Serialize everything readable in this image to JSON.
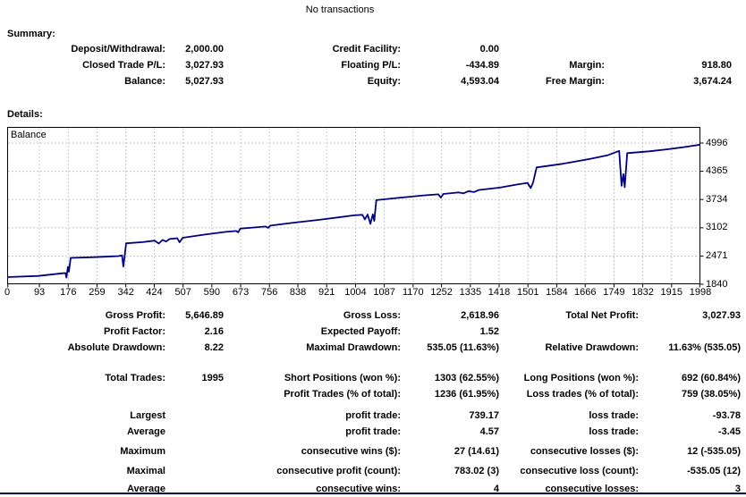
{
  "header": {
    "title": "No transactions"
  },
  "summary": {
    "heading": "Summary:",
    "rows": [
      {
        "cells": [
          "Deposit/Withdrawal:",
          "2,000.00",
          "Credit Facility:",
          "0.00",
          "",
          ""
        ],
        "gap": 0
      },
      {
        "cells": [
          "Closed Trade P/L:",
          "3,027.93",
          "Floating P/L:",
          "-434.89",
          "Margin:",
          "918.80"
        ],
        "gap": 0
      },
      {
        "cells": [
          "Balance:",
          "5,027.93",
          "Equity:",
          "4,593.04",
          "Free Margin:",
          "3,674.24"
        ],
        "gap": 0
      }
    ]
  },
  "details": {
    "heading": "Details:",
    "rows": [
      {
        "cells": [
          "Gross Profit:",
          "5,646.89",
          "Gross Loss:",
          "2,618.96",
          "Total Net Profit:",
          "3,027.93"
        ],
        "gap": 0
      },
      {
        "cells": [
          "Profit Factor:",
          "2.16",
          "Expected Payoff:",
          "1.52",
          "",
          ""
        ],
        "gap": 0
      },
      {
        "cells": [
          "Absolute Drawdown:",
          "8.22",
          "Maximal Drawdown:",
          "535.05 (11.63%)",
          "Relative Drawdown:",
          "11.63% (535.05)"
        ],
        "gap": 0
      },
      {
        "cells": [
          "Total Trades:",
          "1995",
          "Short Positions (won %):",
          "1303 (62.55%)",
          "Long Positions (won %):",
          "692 (60.84%)"
        ],
        "gap": 16
      },
      {
        "cells": [
          "",
          "",
          "Profit Trades (% of total):",
          "1236 (61.95%)",
          "Loss trades (% of total):",
          "759 (38.05%)"
        ],
        "gap": 0
      },
      {
        "cells": [
          "Largest",
          "",
          "profit trade:",
          "739.17",
          "loss trade:",
          "-93.78"
        ],
        "gap": 6
      },
      {
        "cells": [
          "Average",
          "",
          "profit trade:",
          "4.57",
          "loss trade:",
          "-3.45"
        ],
        "gap": 0
      },
      {
        "cells": [
          "Maximum",
          "",
          "consecutive wins ($):",
          "27 (14.61)",
          "consecutive losses ($):",
          "12 (-535.05)"
        ],
        "gap": 4
      },
      {
        "cells": [
          "Maximal",
          "",
          "consecutive profit (count):",
          "783.02 (3)",
          "consecutive loss (count):",
          "-535.05 (12)"
        ],
        "gap": 4
      },
      {
        "cells": [
          "Average",
          "",
          "consecutive wins:",
          "4",
          "consecutive losses:",
          "3"
        ],
        "gap": 2
      }
    ]
  },
  "chart_data": {
    "type": "line",
    "title": "Balance",
    "xlabel": "",
    "ylabel": "",
    "xlim": [
      0,
      1998
    ],
    "ylim": [
      1840,
      4996
    ],
    "x_ticks": [
      0,
      93,
      176,
      259,
      342,
      424,
      507,
      590,
      673,
      756,
      838,
      921,
      1004,
      1087,
      1170,
      1252,
      1335,
      1418,
      1501,
      1584,
      1666,
      1749,
      1832,
      1915,
      1998
    ],
    "y_ticks": [
      4996,
      4365,
      3734,
      3102,
      2471,
      1840
    ],
    "grid": true,
    "legend_position": "none",
    "line_color": "#000080",
    "grid_color": "#c8c8c8",
    "series": [
      {
        "name": "Balance",
        "points": [
          [
            0,
            2000
          ],
          [
            90,
            2025
          ],
          [
            160,
            2085
          ],
          [
            168,
            2090
          ],
          [
            171,
            1990
          ],
          [
            175,
            2230
          ],
          [
            178,
            2120
          ],
          [
            183,
            2430
          ],
          [
            250,
            2445
          ],
          [
            320,
            2470
          ],
          [
            331,
            2485
          ],
          [
            335,
            2235
          ],
          [
            339,
            2495
          ],
          [
            343,
            2755
          ],
          [
            390,
            2780
          ],
          [
            425,
            2815
          ],
          [
            437,
            2750
          ],
          [
            448,
            2830
          ],
          [
            458,
            2795
          ],
          [
            468,
            2850
          ],
          [
            490,
            2868
          ],
          [
            497,
            2778
          ],
          [
            506,
            2878
          ],
          [
            570,
            2950
          ],
          [
            630,
            3010
          ],
          [
            660,
            3030
          ],
          [
            666,
            3000
          ],
          [
            672,
            3085
          ],
          [
            700,
            3100
          ],
          [
            745,
            3130
          ],
          [
            752,
            3100
          ],
          [
            759,
            3150
          ],
          [
            820,
            3210
          ],
          [
            900,
            3280
          ],
          [
            1000,
            3380
          ],
          [
            1024,
            3392
          ],
          [
            1031,
            3290
          ],
          [
            1039,
            3398
          ],
          [
            1047,
            3190
          ],
          [
            1054,
            3402
          ],
          [
            1058,
            3255
          ],
          [
            1064,
            3720
          ],
          [
            1120,
            3765
          ],
          [
            1200,
            3825
          ],
          [
            1243,
            3850
          ],
          [
            1250,
            3775
          ],
          [
            1257,
            3858
          ],
          [
            1300,
            3892
          ],
          [
            1315,
            3872
          ],
          [
            1330,
            3922
          ],
          [
            1345,
            3900
          ],
          [
            1360,
            3948
          ],
          [
            1420,
            4000
          ],
          [
            1470,
            4070
          ],
          [
            1500,
            4105
          ],
          [
            1509,
            3990
          ],
          [
            1516,
            4115
          ],
          [
            1526,
            4450
          ],
          [
            1600,
            4530
          ],
          [
            1680,
            4640
          ],
          [
            1730,
            4720
          ],
          [
            1764,
            4820
          ],
          [
            1771,
            4040
          ],
          [
            1776,
            4300
          ],
          [
            1780,
            4010
          ],
          [
            1787,
            4770
          ],
          [
            1850,
            4810
          ],
          [
            1900,
            4855
          ],
          [
            1950,
            4905
          ],
          [
            1998,
            4960
          ]
        ]
      }
    ]
  }
}
